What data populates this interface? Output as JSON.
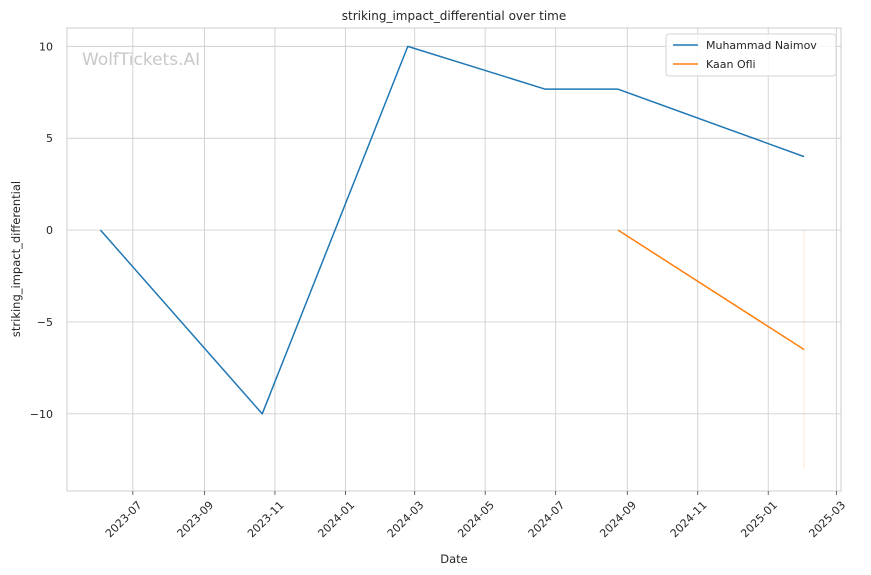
{
  "chart_data": {
    "type": "line",
    "title": "striking_impact_differential over time",
    "xlabel": "Date",
    "ylabel": "striking_impact_differential",
    "x_type": "date",
    "xlim": [
      "2023-05-05",
      "2025-03-05"
    ],
    "ylim": [
      -14.2,
      11.0
    ],
    "x_tick_labels": [
      "2023-07",
      "2023-09",
      "2023-11",
      "2024-01",
      "2024-03",
      "2024-05",
      "2024-07",
      "2024-09",
      "2024-11",
      "2025-01",
      "2025-03"
    ],
    "x_tick_dates": [
      "2023-07-01",
      "2023-09-01",
      "2023-11-01",
      "2024-01-01",
      "2024-03-01",
      "2024-05-01",
      "2024-07-01",
      "2024-09-01",
      "2024-11-01",
      "2025-01-01",
      "2025-03-01"
    ],
    "y_ticks": [
      10,
      5,
      0,
      -5,
      -10
    ],
    "y_tick_labels": [
      "10",
      "5",
      "0",
      "−5",
      "−10"
    ],
    "grid": true,
    "legend_position": "top-right",
    "watermark": "WolfTickets.AI",
    "series": [
      {
        "name": "Muhammad Naimov",
        "color": "#1f77b4",
        "points": [
          {
            "x": "2023-06-03",
            "y": 0
          },
          {
            "x": "2023-10-21",
            "y": -10
          },
          {
            "x": "2024-02-24",
            "y": 10
          },
          {
            "x": "2024-06-22",
            "y": 7.67
          },
          {
            "x": "2024-08-24",
            "y": 7.67
          },
          {
            "x": "2025-02-01",
            "y": 4
          }
        ]
      },
      {
        "name": "Kaan Ofli",
        "color": "#ff7f0e",
        "points": [
          {
            "x": "2024-08-24",
            "y": 0
          },
          {
            "x": "2025-02-01",
            "y": -6.5
          }
        ]
      }
    ],
    "faint_vertical_segment": {
      "x": "2025-02-01",
      "y_from": 0,
      "y_to": -13,
      "color": "#ff7f0e"
    }
  }
}
